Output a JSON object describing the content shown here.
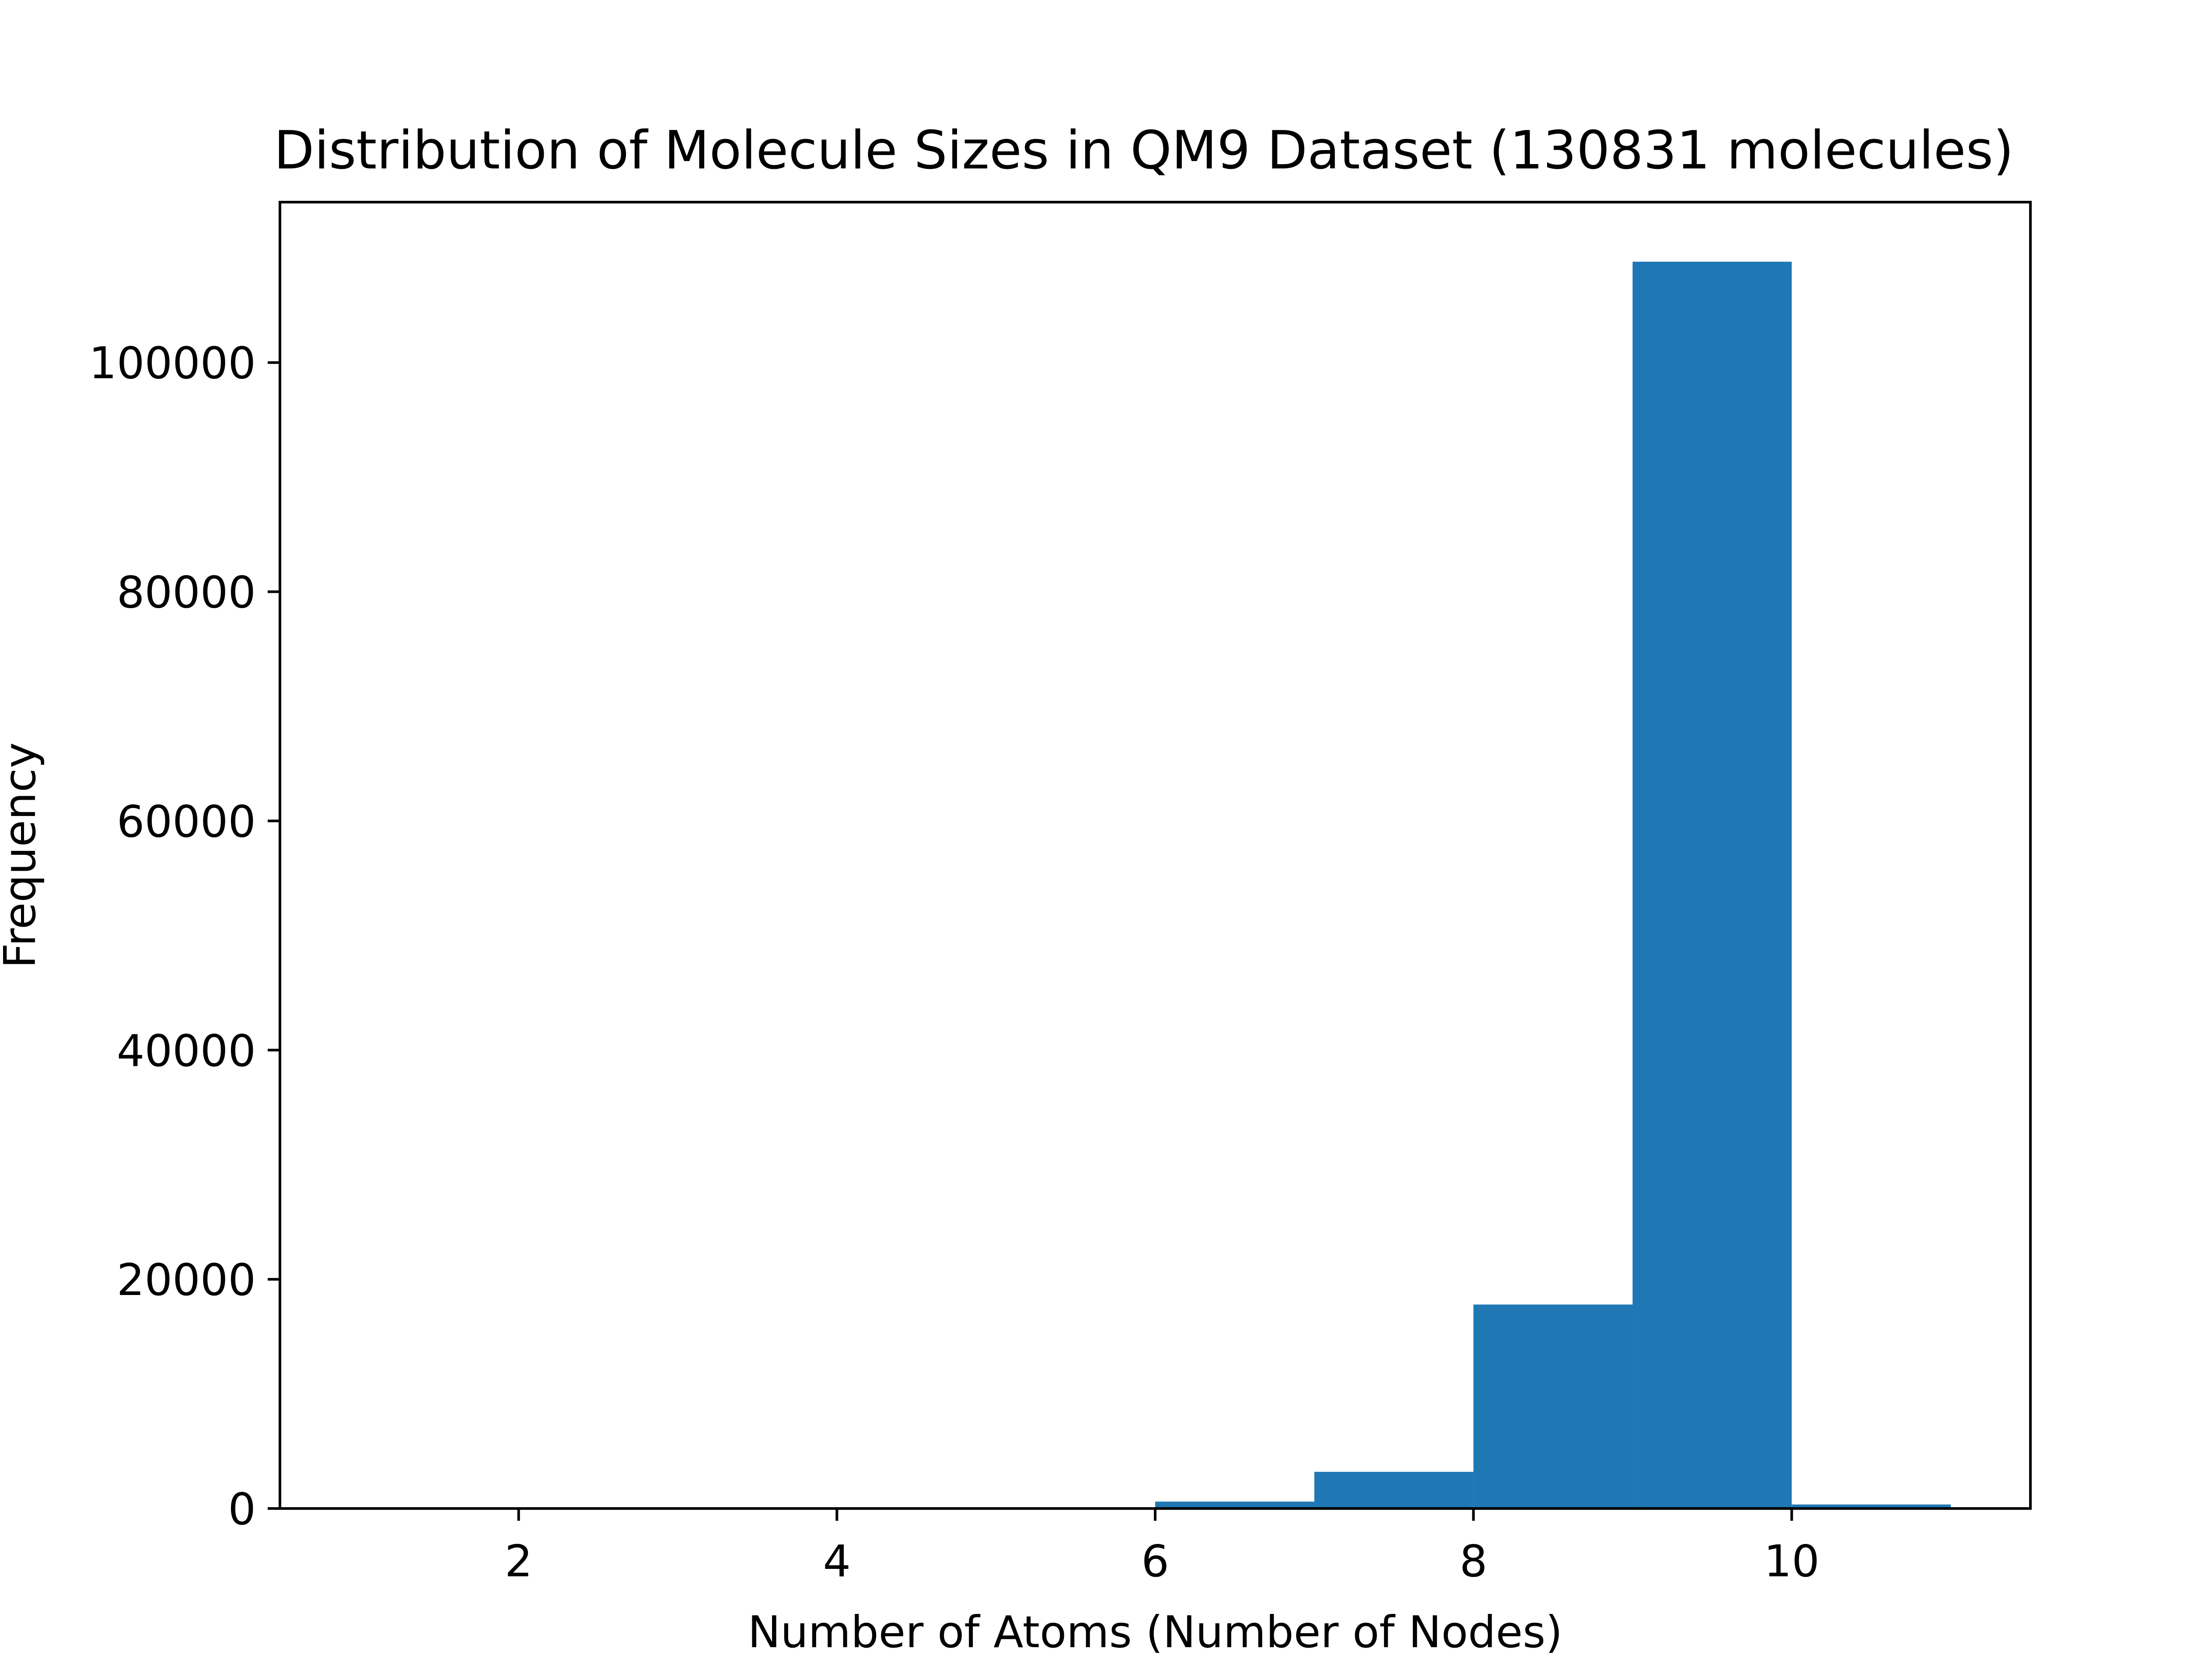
{
  "chart_data": {
    "type": "bar",
    "title": "Distribution of Molecule Sizes in QM9 Dataset (130831 molecules)",
    "xlabel": "Number of Atoms (Number of Nodes)",
    "ylabel": "Frequency",
    "xlim": [
      0.5,
      11.5
    ],
    "ylim": [
      0,
      114000
    ],
    "x_ticks": [
      2,
      4,
      6,
      8,
      10
    ],
    "y_ticks": [
      0,
      20000,
      40000,
      60000,
      80000,
      100000
    ],
    "grid": false,
    "bar_color": "#1f77b4",
    "bins": [
      {
        "start": 1,
        "end": 2,
        "value": 2
      },
      {
        "start": 2,
        "end": 3,
        "value": 3
      },
      {
        "start": 3,
        "end": 4,
        "value": 5
      },
      {
        "start": 4,
        "end": 5,
        "value": 13
      },
      {
        "start": 5,
        "end": 6,
        "value": 52
      },
      {
        "start": 6,
        "end": 7,
        "value": 600
      },
      {
        "start": 7,
        "end": 8,
        "value": 3200
      },
      {
        "start": 8,
        "end": 9,
        "value": 17800
      },
      {
        "start": 9,
        "end": 10,
        "value": 108800
      },
      {
        "start": 10,
        "end": 11,
        "value": 350
      }
    ]
  }
}
